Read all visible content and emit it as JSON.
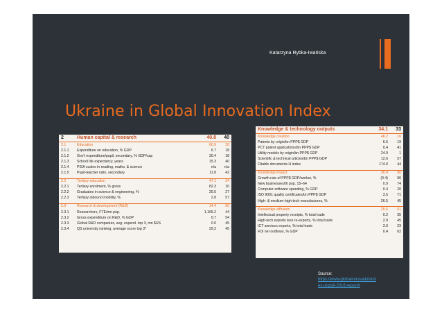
{
  "slide": {
    "author": "Katarzyna Rybka-Iwańska",
    "title": "Ukraine in Global Innovation Index",
    "source_label": "Source:",
    "source_link_line1": "https://www.globalinnovationind",
    "source_link_line2": "ex.org/gii-2016-report#"
  },
  "left_table": {
    "header": {
      "code": "2",
      "label": "Human capital & research",
      "value": "40.8",
      "rank": "40"
    },
    "rows": [
      {
        "code": "2.1",
        "label": "Education",
        "value": "60.9",
        "rank": "20",
        "type": "sub"
      },
      {
        "code": "2.1.1",
        "label": "Expenditure on education, % GDP",
        "value": "6.7",
        "rank": "18"
      },
      {
        "code": "2.1.2",
        "label": "Gov't expenditure/pupil, secondary, % GDP/cap",
        "value": "30.4",
        "rank": "18"
      },
      {
        "code": "2.1.3",
        "label": "School life expectancy, years",
        "value": "15.3",
        "rank": "40"
      },
      {
        "code": "2.1.4",
        "label": "PISA scales in reading, maths, & science",
        "value": "n/a",
        "rank": "n/a"
      },
      {
        "code": "2.1.5",
        "label": "Pupil-teacher ratio, secondary",
        "value": "11.8",
        "rank": "42"
      },
      {
        "code": "2.2",
        "label": "Tertiary education",
        "value": "47.1",
        "rank": "24",
        "type": "sub"
      },
      {
        "code": "2.2.1",
        "label": "Tertiary enrolment, % gross",
        "value": "82.3",
        "rank": "10"
      },
      {
        "code": "2.2.2",
        "label": "Graduates in science & engineering, %",
        "value": "25.5",
        "rank": "27"
      },
      {
        "code": "2.2.3",
        "label": "Tertiary inbound mobility, %",
        "value": "2.8",
        "rank": "57"
      },
      {
        "code": "2.3",
        "label": "Research & development (R&D)",
        "value": "14.4",
        "rank": "50",
        "type": "sub"
      },
      {
        "code": "2.3.1",
        "label": "Researchers, FTE/mn pop.",
        "value": "1,165.2",
        "rank": "44"
      },
      {
        "code": "2.3.2",
        "label": "Gross expenditure on R&D, % GDP",
        "value": "0.7",
        "rank": "54"
      },
      {
        "code": "2.3.3",
        "label": "Global R&D companies, avg. expend. top 3, mn $US",
        "value": "0.0",
        "rank": "45"
      },
      {
        "code": "2.3.4",
        "label": "QS university ranking, average score top 3*",
        "value": "29.2",
        "rank": "45"
      }
    ]
  },
  "right_table": {
    "header": {
      "label": "Knowledge & technology outputs",
      "value": "34.1",
      "rank": "33"
    },
    "rows": [
      {
        "label": "Knowledge creation",
        "value": "46.2",
        "rank": "16",
        "type": "sub"
      },
      {
        "label": "Patents by origin/bn PPP$ GDP",
        "value": "6.6",
        "rank": "19"
      },
      {
        "label": "PCT patent applications/bn PPP$ GDP",
        "value": "0.4",
        "rank": "41"
      },
      {
        "label": "Utility models by origin/bn PPP$ GDP",
        "value": "24.9",
        "rank": "1"
      },
      {
        "label": "Scientific & technical articles/bn PPP$ GDP",
        "value": "12.6",
        "rank": "57"
      },
      {
        "label": "Citable documents H index",
        "value": "174.0",
        "rank": "44"
      },
      {
        "label": "Knowledge impact",
        "value": "30.4",
        "rank": "90",
        "type": "sub"
      },
      {
        "label": "Growth rate of PPP$ GDP/worker, %",
        "value": "(0.4)",
        "rank": "96"
      },
      {
        "label": "New businesses/th pop. 15–64",
        "value": "0.9",
        "rank": "74"
      },
      {
        "label": "Computer software spending, % GDP",
        "value": "0.4",
        "rank": "20"
      },
      {
        "label": "ISO 9001 quality certificates/bn PPP$ GDP",
        "value": "3.5",
        "rank": "71"
      },
      {
        "label": "High- & medium-high-tech manufactures, %",
        "value": "26.5",
        "rank": "45"
      },
      {
        "label": "Knowledge diffusion",
        "value": "25.6",
        "rank": "61",
        "type": "sub"
      },
      {
        "label": "Intellectual property receipts, % total trade",
        "value": "0.2",
        "rank": "35"
      },
      {
        "label": "High-tech exports less re-exports, % total trade",
        "value": "2.9",
        "rank": "45"
      },
      {
        "label": "ICT services exports, % total trade",
        "value": "3.0",
        "rank": "23"
      },
      {
        "label": "FDI net outflows, % GDP",
        "value": "0.4",
        "rank": "62"
      }
    ]
  },
  "colors": {
    "background": "#2d3238",
    "accent": "#e96b1f",
    "link": "#3fa3e0"
  }
}
